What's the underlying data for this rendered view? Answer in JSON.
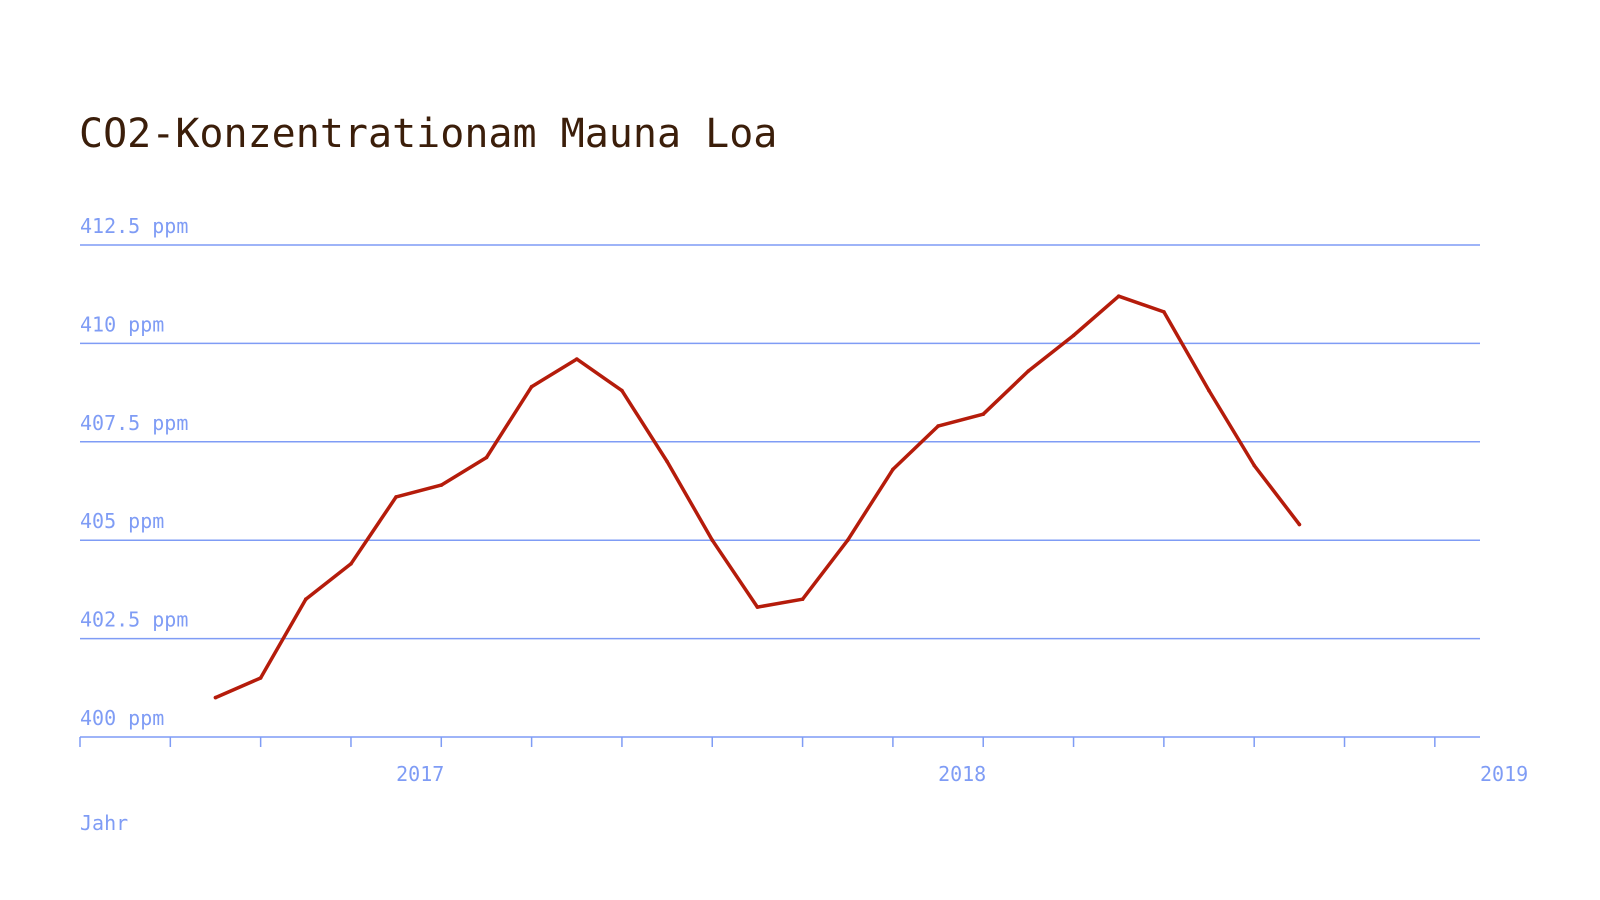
{
  "colors": {
    "background": "#ffffff",
    "title": "#3b1e0a",
    "grid": "#7f9cf5",
    "axis_text": "#7f9cf5",
    "series": "#b51c0b"
  },
  "chart_data": {
    "type": "line",
    "title": "CO2-Konzentrationam Mauna Loa",
    "xlabel": "Jahr",
    "ylabel": "",
    "x_ticks": [
      "2017",
      "2018",
      "2019"
    ],
    "y_ticks": [
      "400 ppm",
      "402.5 ppm",
      "405 ppm",
      "407.5 ppm",
      "410 ppm",
      "412.5 ppm"
    ],
    "y_tick_values": [
      400,
      402.5,
      405,
      407.5,
      410,
      412.5
    ],
    "xlim": [
      "2016-06",
      "2019-01"
    ],
    "ylim": [
      400,
      412.5
    ],
    "grid": true,
    "series": [
      {
        "color": "#b51c0b",
        "x": [
          "2016-09",
          "2016-10",
          "2016-11",
          "2016-12",
          "2017-01",
          "2017-02",
          "2017-03",
          "2017-04",
          "2017-05",
          "2017-06",
          "2017-07",
          "2017-08",
          "2017-09",
          "2017-10",
          "2017-11",
          "2017-12",
          "2018-01",
          "2018-02",
          "2018-03",
          "2018-04",
          "2018-05",
          "2018-06",
          "2018-07",
          "2018-08",
          "2018-09"
        ],
        "values": [
          401.0,
          401.5,
          403.5,
          404.4,
          406.1,
          406.4,
          407.1,
          408.9,
          409.6,
          408.8,
          407.0,
          405.0,
          403.3,
          403.5,
          405.0,
          406.8,
          407.9,
          408.2,
          409.3,
          410.2,
          411.2,
          410.8,
          408.8,
          406.9,
          405.4
        ]
      }
    ]
  }
}
